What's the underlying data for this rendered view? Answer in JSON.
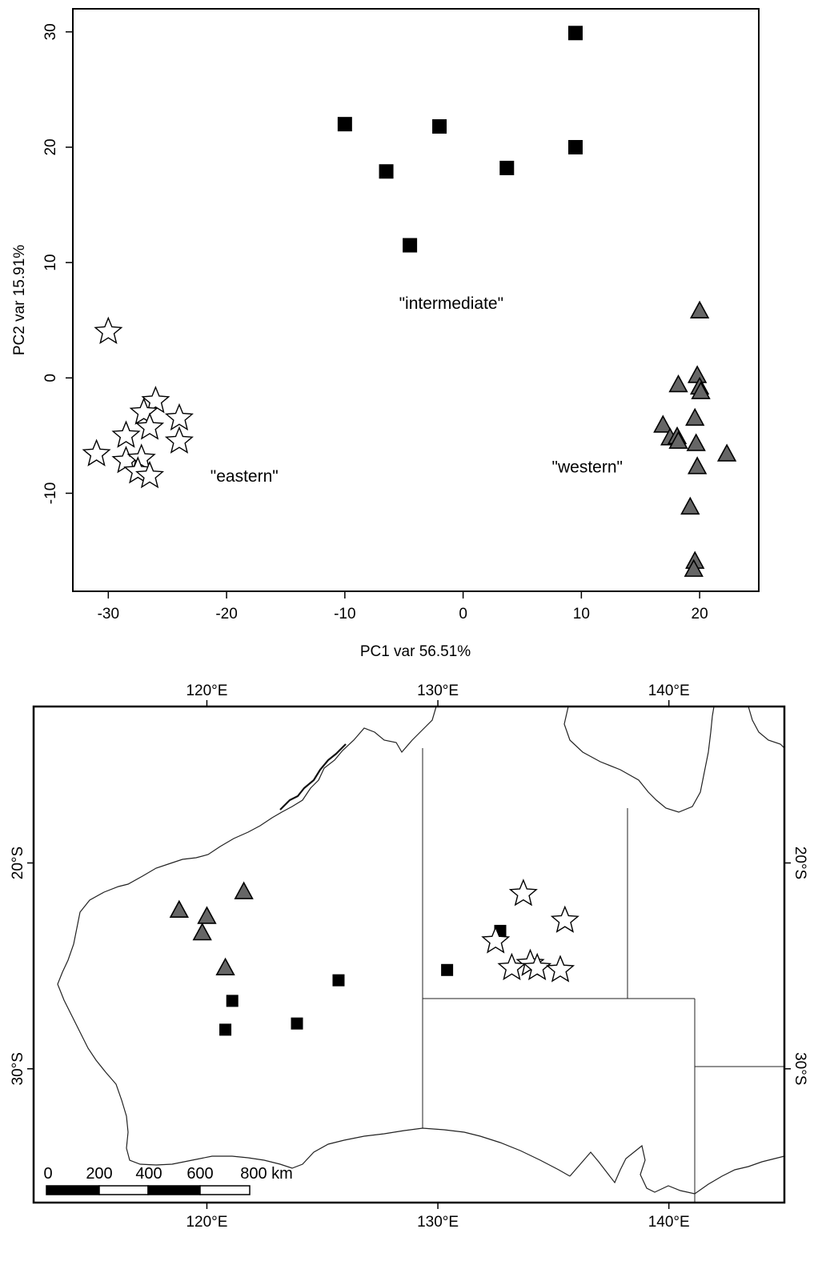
{
  "chart_data": [
    {
      "type": "scatter",
      "xlabel": "PC1 var 56.51%",
      "ylabel": "PC2 var 15.91%",
      "xlim": [
        -33,
        25
      ],
      "ylim": [
        -18.5,
        32
      ],
      "xticks": [
        -30,
        -20,
        -10,
        0,
        10,
        20
      ],
      "yticks": [
        -10,
        0,
        10,
        20,
        30
      ],
      "grid": false,
      "annotations": [
        {
          "text": "\"intermediate\"",
          "x": -1,
          "y": 6
        },
        {
          "text": "\"eastern\"",
          "x": -18.5,
          "y": -9
        },
        {
          "text": "\"western\"",
          "x": 10.5,
          "y": -8.2
        }
      ],
      "series": [
        {
          "marker": "square",
          "color": "#000000",
          "points": [
            [
              9.5,
              29.9
            ],
            [
              -10,
              22
            ],
            [
              -2,
              21.8
            ],
            [
              -6.5,
              17.9
            ],
            [
              3.7,
              18.2
            ],
            [
              9.5,
              20
            ],
            [
              -4.5,
              11.5
            ]
          ]
        },
        {
          "marker": "star",
          "color": "#ffffff",
          "points": [
            [
              -30,
              4
            ],
            [
              -26,
              -2
            ],
            [
              -27,
              -3
            ],
            [
              -24,
              -3.5
            ],
            [
              -26.5,
              -4.3
            ],
            [
              -28.5,
              -5
            ],
            [
              -24,
              -5.5
            ],
            [
              -31,
              -6.6
            ],
            [
              -28.5,
              -7.2
            ],
            [
              -27.2,
              -7
            ],
            [
              -27.5,
              -8.1
            ],
            [
              -26.5,
              -8.5
            ]
          ]
        },
        {
          "marker": "triangle",
          "color": "#666666",
          "points": [
            [
              20,
              5.8
            ],
            [
              19.8,
              0.2
            ],
            [
              18.2,
              -0.6
            ],
            [
              20,
              -0.8
            ],
            [
              20.1,
              -1.2
            ],
            [
              19.6,
              -3.5
            ],
            [
              16.9,
              -4.1
            ],
            [
              17.5,
              -5.2
            ],
            [
              18.1,
              -5.1
            ],
            [
              18.2,
              -5.5
            ],
            [
              19.7,
              -5.7
            ],
            [
              22.3,
              -6.6
            ],
            [
              19.8,
              -7.7
            ],
            [
              19.2,
              -11.2
            ],
            [
              19.6,
              -15.9
            ],
            [
              19.5,
              -16.6
            ]
          ]
        }
      ]
    },
    {
      "type": "map",
      "xlim": [
        112.5,
        145
      ],
      "ylim": [
        -36.5,
        -12.4
      ],
      "xticks": [
        120,
        130,
        140
      ],
      "yticks": [
        -20,
        -30
      ],
      "xtick_labels": [
        "120°E",
        "130°E",
        "140°E"
      ],
      "ytick_labels": [
        "20°S",
        "30°S"
      ],
      "scalebar": {
        "labels": [
          "0",
          "200",
          "400",
          "600",
          "800 km"
        ]
      },
      "series": [
        {
          "marker": "triangle",
          "color": "#666666",
          "points": [
            [
              121.6,
              -21.4
            ],
            [
              118.8,
              -22.3
            ],
            [
              120,
              -22.6
            ],
            [
              119.8,
              -23.4
            ],
            [
              120.8,
              -25.1
            ]
          ]
        },
        {
          "marker": "square",
          "color": "#000000",
          "points": [
            [
              125.7,
              -25.7
            ],
            [
              121.1,
              -26.7
            ],
            [
              120.8,
              -28.1
            ],
            [
              123.9,
              -27.8
            ],
            [
              130.4,
              -25.2
            ],
            [
              132.7,
              -23.3
            ]
          ]
        },
        {
          "marker": "star",
          "color": "#ffffff",
          "points": [
            [
              133.7,
              -21.5
            ],
            [
              135.5,
              -22.8
            ],
            [
              132.5,
              -23.8
            ],
            [
              134,
              -24.9
            ],
            [
              133.2,
              -25.1
            ],
            [
              134.3,
              -25.1
            ],
            [
              135.3,
              -25.2
            ]
          ]
        }
      ]
    }
  ]
}
